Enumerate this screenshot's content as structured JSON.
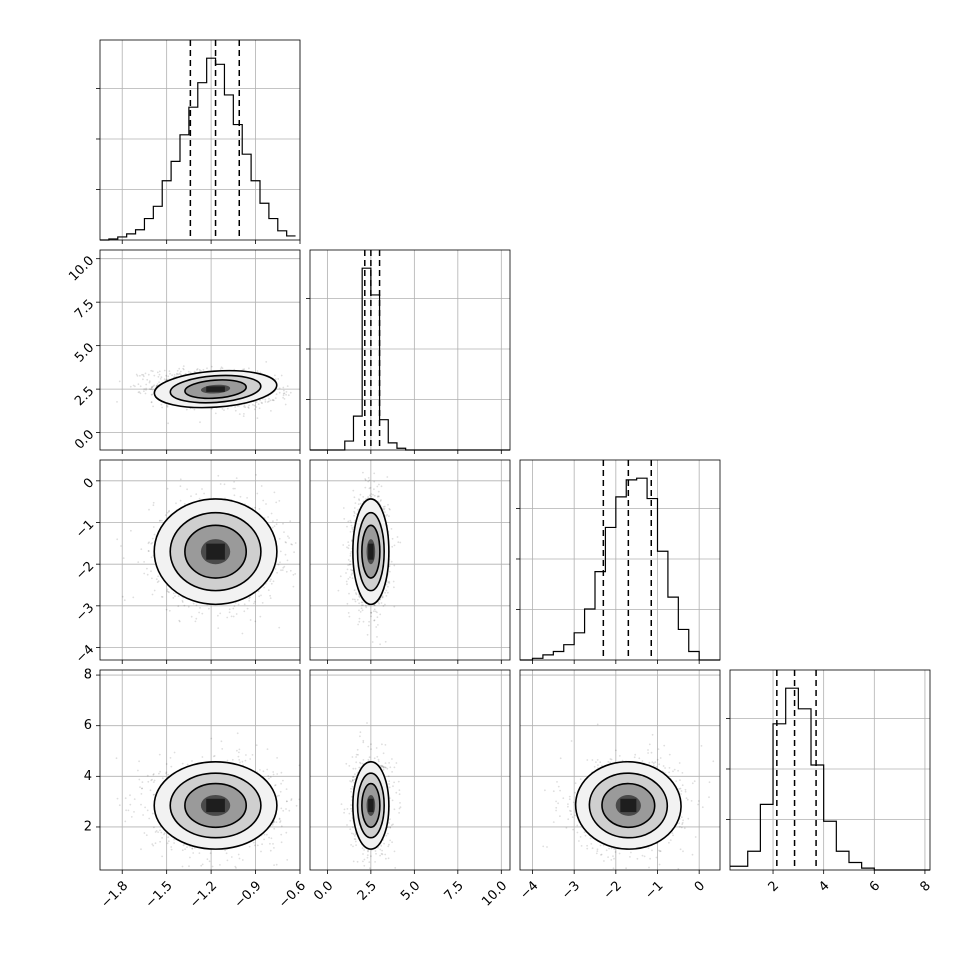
{
  "chart_data": {
    "type": "corner",
    "title": "",
    "parameters": [
      {
        "index": 0,
        "range": [
          -1.95,
          -0.6
        ],
        "ticks": [
          "-1.8",
          "-1.5",
          "-1.2",
          "-0.9",
          "-0.6"
        ],
        "tick_values": [
          -1.8,
          -1.5,
          -1.2,
          -0.9,
          -0.6
        ],
        "median": -1.17,
        "q16": -1.34,
        "q84": -1.01,
        "std": 0.18
      },
      {
        "index": 1,
        "range": [
          -1.0,
          10.5
        ],
        "ticks": [
          "0.0",
          "2.5",
          "5.0",
          "7.5",
          "10.0"
        ],
        "tick_values": [
          0.0,
          2.5,
          5.0,
          7.5,
          10.0
        ],
        "median": 2.5,
        "q16": 2.15,
        "q84": 3.0,
        "std": 0.45
      },
      {
        "index": 2,
        "range": [
          -4.3,
          0.5
        ],
        "ticks": [
          "-4",
          "-3",
          "-2",
          "-1",
          "0"
        ],
        "tick_values": [
          -4,
          -3,
          -2,
          -1,
          0
        ],
        "median": -1.7,
        "q16": -2.3,
        "q84": -1.15,
        "std": 0.55
      },
      {
        "index": 3,
        "range": [
          0.3,
          8.2
        ],
        "ticks": [
          "2",
          "4",
          "6",
          "8"
        ],
        "tick_values": [
          2,
          4,
          6,
          8
        ],
        "median": 2.85,
        "q16": 2.15,
        "q84": 3.7,
        "std": 0.75
      }
    ],
    "correlations": {
      "1_0": -0.2,
      "2_0": 0.0,
      "2_1": 0.0,
      "3_0": 0.0,
      "3_1": 0.0,
      "3_2": 0.1
    },
    "histograms": [
      {
        "param": 0,
        "bin_edges": [
          -1.95,
          -1.89,
          -1.83,
          -1.77,
          -1.71,
          -1.65,
          -1.59,
          -1.53,
          -1.47,
          -1.41,
          -1.35,
          -1.29,
          -1.23,
          -1.17,
          -1.11,
          -1.05,
          -0.99,
          -0.93,
          -0.87,
          -0.81,
          -0.75,
          -0.69,
          -0.63
        ],
        "counts": [
          0,
          1,
          3,
          6,
          10,
          21,
          33,
          58,
          77,
          103,
          130,
          154,
          178,
          172,
          142,
          113,
          84,
          58,
          36,
          21,
          9,
          4
        ]
      },
      {
        "param": 1,
        "bin_edges": [
          -1.0,
          0.0,
          1.0,
          1.5,
          2.0,
          2.5,
          3.0,
          3.5,
          4.0,
          4.5,
          5.0,
          10.5
        ],
        "counts": [
          0,
          0,
          5,
          19,
          102,
          87,
          17,
          4,
          1,
          0,
          0
        ]
      },
      {
        "param": 2,
        "bin_edges": [
          -4.3,
          -4.0,
          -3.75,
          -3.5,
          -3.25,
          -3.0,
          -2.75,
          -2.5,
          -2.25,
          -2.0,
          -1.75,
          -1.5,
          -1.25,
          -1.0,
          -0.75,
          -0.5,
          -0.25,
          0.0,
          0.5
        ],
        "counts": [
          0,
          1,
          3,
          5,
          9,
          16,
          30,
          52,
          78,
          96,
          106,
          107,
          95,
          64,
          37,
          18,
          5,
          0
        ]
      },
      {
        "param": 3,
        "bin_edges": [
          0.3,
          1.0,
          1.5,
          2.0,
          2.5,
          3.0,
          3.5,
          4.0,
          4.5,
          5.0,
          5.5,
          6.0,
          6.5,
          7.0,
          8.2
        ],
        "counts": [
          2,
          10,
          35,
          78,
          97,
          86,
          56,
          26,
          10,
          4,
          1,
          0,
          0,
          0
        ]
      }
    ],
    "grid": true,
    "quantile_lines": "dashed"
  }
}
